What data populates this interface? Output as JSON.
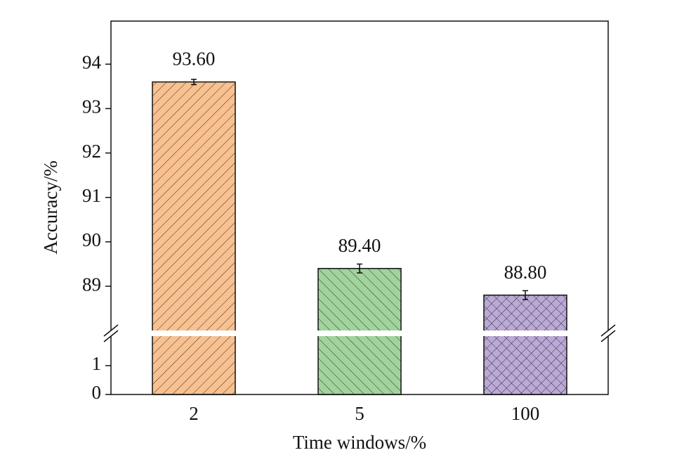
{
  "chart_data": {
    "type": "bar",
    "x_label": "Time windows/%",
    "y_label": "Accuracy/%",
    "categories": [
      "2",
      "5",
      "100"
    ],
    "values": [
      93.6,
      89.4,
      88.8
    ],
    "value_labels": [
      "93.60",
      "89.40",
      "88.80"
    ],
    "errors": [
      0.06,
      0.1,
      0.1
    ],
    "colors": [
      "#f9c190",
      "#a0d49c",
      "#bba9d8"
    ],
    "hatches": [
      "backslash",
      "slash",
      "cross"
    ],
    "axis_break": true,
    "ylim_lower": [
      0,
      2.12
    ],
    "yticks_lower": [
      0,
      1
    ],
    "ylim_upper": [
      87.94,
      94.97
    ],
    "yticks_upper": [
      89,
      90,
      91,
      92,
      93,
      94
    ]
  }
}
